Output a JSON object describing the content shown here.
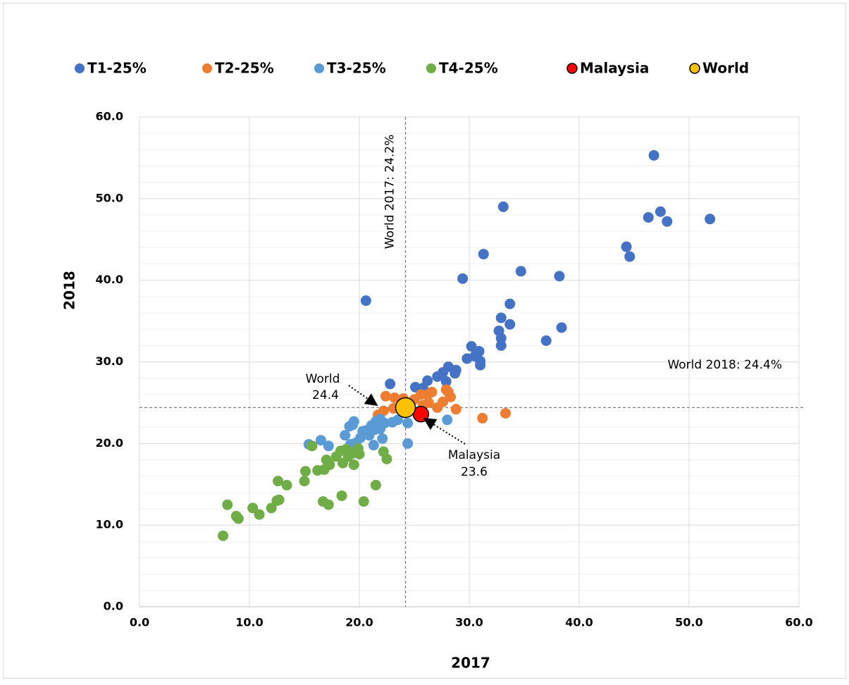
{
  "chart_data": {
    "type": "scatter",
    "xlabel": "2017",
    "ylabel": "2018",
    "xlim": [
      0,
      60
    ],
    "ylim": [
      0,
      60
    ],
    "xticks": [
      {
        "value": 0,
        "label": "0.0"
      },
      {
        "value": 10,
        "label": "10.0"
      },
      {
        "value": 20,
        "label": "20.0"
      },
      {
        "value": 30,
        "label": "30.0"
      },
      {
        "value": 40,
        "label": "40.0"
      },
      {
        "value": 50,
        "label": "50.0"
      },
      {
        "value": 60,
        "label": "60.0"
      }
    ],
    "yticks": [
      {
        "value": 0,
        "label": "0.0"
      },
      {
        "value": 10,
        "label": "10.0"
      },
      {
        "value": 20,
        "label": "20.0"
      },
      {
        "value": 30,
        "label": "30.0"
      },
      {
        "value": 40,
        "label": "40.0"
      },
      {
        "value": 50,
        "label": "50.0"
      },
      {
        "value": 60,
        "label": "60.0"
      }
    ],
    "grid": true,
    "legend": "top",
    "ref_x": {
      "value": 24.2,
      "label": "World 2017: 24.2%"
    },
    "ref_y": {
      "value": 24.4,
      "label": "World 2018: 24.4%"
    },
    "annotations": [
      {
        "lines": [
          "World",
          "24.4"
        ]
      },
      {
        "lines": [
          "Malaysia",
          "23.6"
        ]
      }
    ],
    "series": [
      {
        "name": "T1-25%",
        "color": "#4472C4",
        "x": [
          46.8,
          33.1,
          51.9,
          47.4,
          46.3,
          48.0,
          44.3,
          44.6,
          31.3,
          34.7,
          29.4,
          38.2,
          20.6,
          33.7,
          33.7,
          38.4,
          32.9,
          37.0,
          32.7,
          32.9,
          32.9,
          30.2,
          30.9,
          30.5,
          31.0,
          31.0,
          29.8,
          28.8,
          28.7,
          28.1,
          27.6,
          27.1,
          27.9,
          26.2,
          22.8,
          25.1,
          25.8
        ],
        "values": [
          55.3,
          49.0,
          47.5,
          48.4,
          47.7,
          47.2,
          44.1,
          42.9,
          43.2,
          41.1,
          40.2,
          40.5,
          37.5,
          37.1,
          34.6,
          34.2,
          35.4,
          32.6,
          33.8,
          32.9,
          32.0,
          31.9,
          31.3,
          30.7,
          30.1,
          29.6,
          30.4,
          29.0,
          28.6,
          29.4,
          28.7,
          28.2,
          27.6,
          27.7,
          27.3,
          26.9,
          26.8
        ]
      },
      {
        "name": "T2-25%",
        "color": "#ED7D31",
        "x": [
          22.4,
          23.2,
          24.0,
          25.0,
          25.6,
          26.2,
          26.6,
          27.9,
          28.1,
          28.3,
          27.6,
          27.1,
          28.8,
          31.2,
          33.3,
          23.1,
          22.2,
          21.7,
          25.8,
          26.3
        ],
        "values": [
          25.8,
          25.6,
          25.5,
          25.4,
          26.0,
          26.0,
          26.3,
          26.6,
          26.3,
          25.7,
          25.1,
          24.4,
          24.2,
          23.1,
          23.7,
          24.3,
          24.0,
          23.5,
          24.7,
          25.0
        ]
      },
      {
        "name": "T3-25%",
        "color": "#5B9BD5",
        "x": [
          24.4,
          24.4,
          28.0,
          23.5,
          23.0,
          22.3,
          21.9,
          21.9,
          21.4,
          21.1,
          20.6,
          20.3,
          20.1,
          20.9,
          22.1,
          21.3,
          19.7,
          19.2,
          18.7,
          19.4,
          19.1,
          19.5,
          16.5,
          15.4,
          17.2,
          21.5,
          21.8
        ],
        "values": [
          22.5,
          20.0,
          22.9,
          22.9,
          22.6,
          22.5,
          23.0,
          21.8,
          21.7,
          22.2,
          21.6,
          21.5,
          20.7,
          21.0,
          20.6,
          19.8,
          20.1,
          19.9,
          21.0,
          22.3,
          22.1,
          22.7,
          20.4,
          19.9,
          19.7,
          22.7,
          22.2
        ]
      },
      {
        "name": "T4-25%",
        "color": "#70AD47",
        "x": [
          7.6,
          8.0,
          8.8,
          9.0,
          10.3,
          10.9,
          12.0,
          12.5,
          12.7,
          12.6,
          13.4,
          15.0,
          15.1,
          15.7,
          16.2,
          16.8,
          16.7,
          17.2,
          17.0,
          17.3,
          17.9,
          18.3,
          18.5,
          19.0,
          19.4,
          19.9,
          19.5,
          18.4,
          19.7,
          20.0,
          20.4,
          21.5,
          22.2,
          22.5,
          18.8
        ],
        "values": [
          8.7,
          12.5,
          11.1,
          10.8,
          12.1,
          11.3,
          12.1,
          13.0,
          13.1,
          15.4,
          14.9,
          15.4,
          16.6,
          19.7,
          16.7,
          16.8,
          12.9,
          12.5,
          18.0,
          17.4,
          18.4,
          19.1,
          17.6,
          18.4,
          18.8,
          19.4,
          17.4,
          13.6,
          19.1,
          18.7,
          12.9,
          14.9,
          19.0,
          18.1,
          19.3
        ]
      },
      {
        "name": "Malaysia",
        "color": "#FF0000",
        "x": [
          25.6
        ],
        "values": [
          23.6
        ]
      },
      {
        "name": "World",
        "color": "#FFC000",
        "x": [
          24.2
        ],
        "values": [
          24.4
        ]
      }
    ]
  }
}
